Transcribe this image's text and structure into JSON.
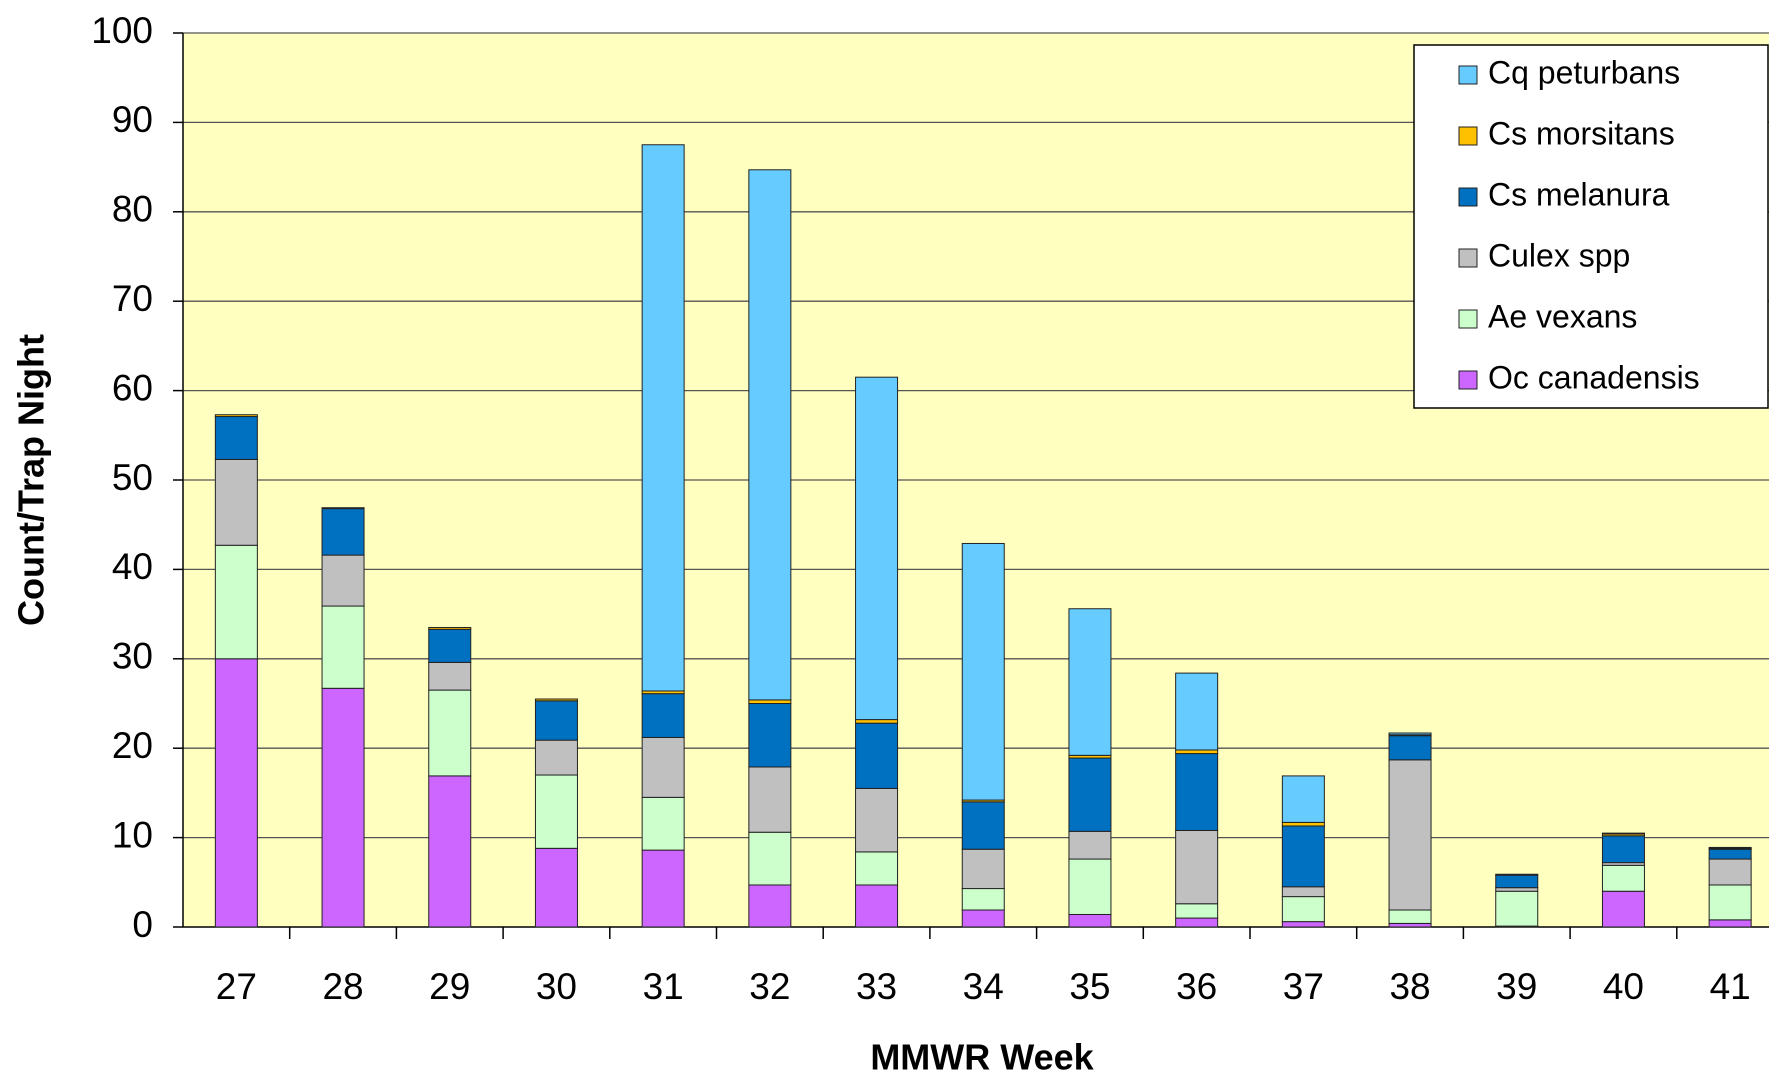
{
  "chart_data": {
    "type": "stacked_bar",
    "xlabel": "MMWR Week",
    "ylabel": "Count/Trap Night",
    "categories": [
      "27",
      "28",
      "29",
      "30",
      "31",
      "32",
      "33",
      "34",
      "35",
      "36",
      "37",
      "38",
      "39",
      "40",
      "41"
    ],
    "series": [
      {
        "name": "Oc canadensis",
        "color": "#cc66ff",
        "values": [
          30.0,
          26.7,
          16.9,
          8.8,
          8.6,
          4.7,
          4.7,
          1.9,
          1.4,
          1.0,
          0.6,
          0.4,
          0.1,
          4.0,
          0.8
        ]
      },
      {
        "name": "Ae vexans",
        "color": "#ccffcc",
        "values": [
          12.7,
          9.2,
          9.6,
          8.2,
          5.9,
          5.9,
          3.7,
          2.4,
          6.2,
          1.6,
          2.8,
          1.5,
          3.9,
          2.9,
          3.9
        ]
      },
      {
        "name": "Culex spp",
        "color": "#c0c0c0",
        "values": [
          9.6,
          5.7,
          3.1,
          3.9,
          6.7,
          7.3,
          7.1,
          4.4,
          3.1,
          8.2,
          1.1,
          16.8,
          0.4,
          0.3,
          2.9
        ]
      },
      {
        "name": "Cs melanura",
        "color": "#0070c0",
        "values": [
          4.8,
          5.2,
          3.7,
          4.4,
          4.9,
          7.1,
          7.3,
          5.3,
          8.2,
          8.6,
          6.8,
          2.7,
          1.4,
          3.0,
          1.1
        ]
      },
      {
        "name": "Cs morsitans",
        "color": "#ffc000",
        "values": [
          0.2,
          0.1,
          0.2,
          0.2,
          0.3,
          0.4,
          0.4,
          0.2,
          0.3,
          0.4,
          0.4,
          0.1,
          0.1,
          0.2,
          0.1
        ]
      },
      {
        "name": "Cq peturbans",
        "color": "#66ccff",
        "values": [
          0,
          0,
          0,
          0,
          61.1,
          59.3,
          38.3,
          28.7,
          16.4,
          8.6,
          5.2,
          0.2,
          0,
          0.1,
          0.1
        ]
      }
    ],
    "ylim": [
      0,
      100
    ],
    "yticks": [
      0,
      10,
      20,
      30,
      40,
      50,
      60,
      70,
      80,
      90,
      100
    ],
    "grid": true,
    "legend": "upper right",
    "legend_order": "reversed",
    "background": "#ffffc0"
  }
}
